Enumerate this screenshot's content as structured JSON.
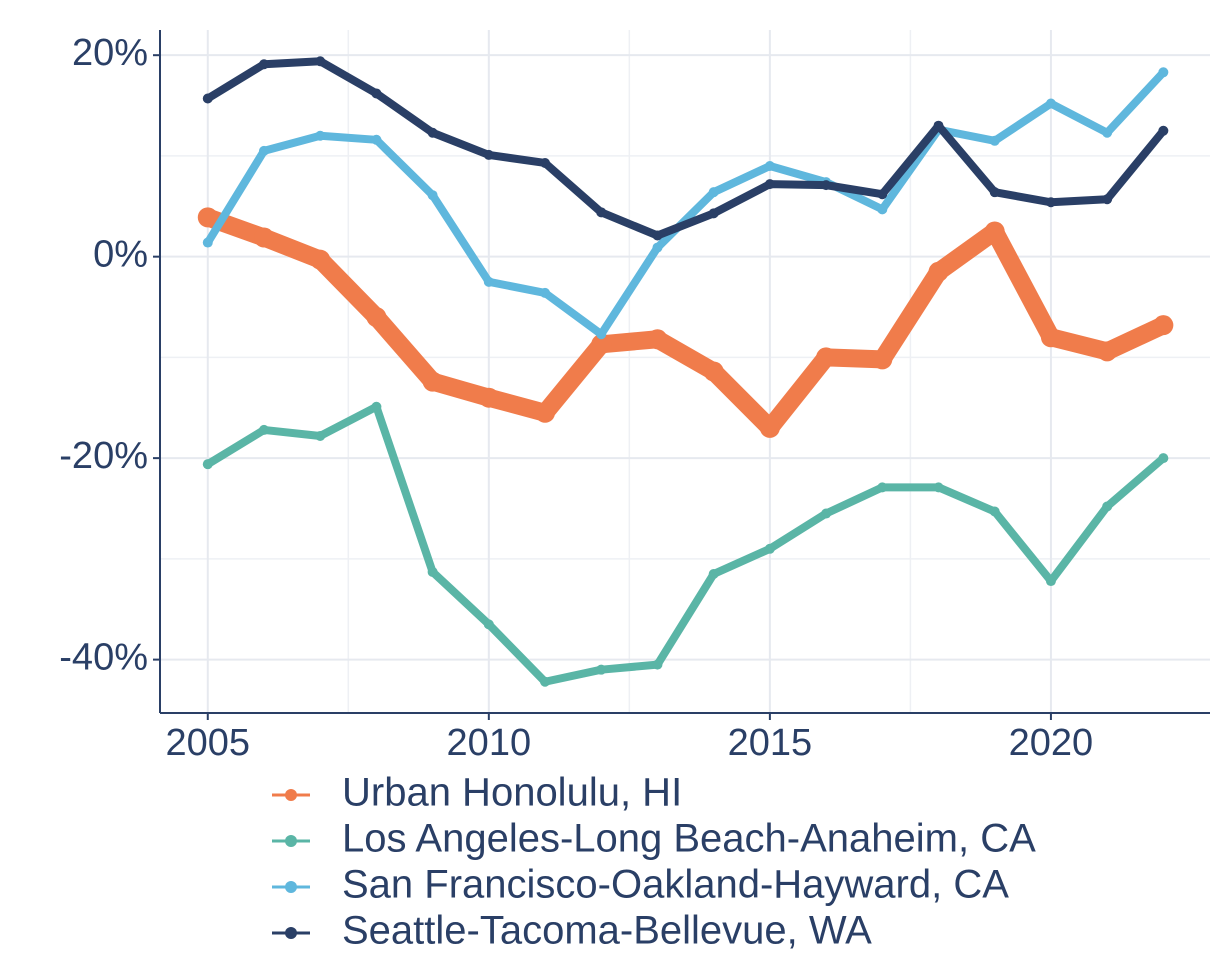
{
  "chart_data": {
    "type": "line",
    "x": [
      2005,
      2006,
      2007,
      2008,
      2009,
      2010,
      2011,
      2012,
      2013,
      2014,
      2015,
      2016,
      2017,
      2018,
      2019,
      2020,
      2021,
      2022
    ],
    "series": [
      {
        "name": "Urban Honolulu, HI",
        "color": "#f07c4b",
        "linewidth": 18,
        "values": [
          3.9,
          1.9,
          -0.3,
          -6,
          -12.4,
          -14,
          -15.5,
          -8.7,
          -8.2,
          -11.4,
          -17,
          -10,
          -10.2,
          -1.5,
          2.5,
          -8,
          -9.4,
          -6.8
        ]
      },
      {
        "name": "Los Angeles-Long Beach-Anaheim, CA",
        "color": "#5ab5a6",
        "linewidth": 8,
        "values": [
          -20.6,
          -17.2,
          -17.8,
          -14.9,
          -31.3,
          -36.5,
          -42.2,
          -41,
          -40.5,
          -31.5,
          -29,
          -25.5,
          -22.9,
          -22.9,
          -25.3,
          -32.2,
          -24.8,
          -20
        ]
      },
      {
        "name": "San Francisco-Oakland-Hayward, CA",
        "color": "#5fb7dd",
        "linewidth": 8,
        "values": [
          1.4,
          10.5,
          12,
          11.6,
          6.1,
          -2.5,
          -3.6,
          -7.7,
          0.9,
          6.4,
          9,
          7.4,
          4.7,
          12.6,
          11.5,
          15.2,
          12.3,
          18.3
        ]
      },
      {
        "name": "Seattle-Tacoma-Bellevue, WA",
        "color": "#2a3f66",
        "linewidth": 8,
        "values": [
          15.7,
          19.1,
          19.4,
          16.2,
          12.3,
          10.1,
          9.3,
          4.4,
          2.1,
          4.3,
          7.2,
          7.1,
          6.2,
          13,
          6.4,
          5.4,
          5.7,
          12.5
        ]
      }
    ],
    "xlim": [
      2004.15,
      2022.83
    ],
    "xticks": [
      2005,
      2010,
      2015,
      2020
    ],
    "ylim": [
      -45.3,
      22.5
    ],
    "yticks": [
      {
        "value": -40,
        "label": "-40%"
      },
      {
        "value": -20,
        "label": "-20%"
      },
      {
        "value": 0,
        "label": "0%"
      },
      {
        "value": 20,
        "label": "20%"
      }
    ],
    "grid": true,
    "legend": "bottom"
  }
}
